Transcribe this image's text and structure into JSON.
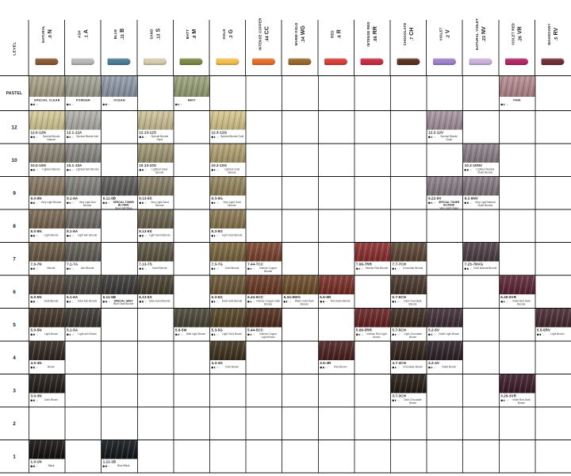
{
  "page": {
    "left_axis_label": "LEVEL"
  },
  "dot_pattern": [
    "filled",
    "half",
    "empty"
  ],
  "columns": [
    {
      "name": "NATURAL",
      "letter": "N",
      "code": ".0",
      "swatch_color": "#8c5a36"
    },
    {
      "name": "ASH",
      "letter": "A",
      "code": ".1",
      "swatch_color": "#b7bab6"
    },
    {
      "name": "BLUE",
      "letter": "B",
      "code": ".11",
      "swatch_color": "#4f7e95"
    },
    {
      "name": "SAND",
      "letter": "S",
      "code": ".13",
      "swatch_color": "#d9cbb1"
    },
    {
      "name": "MATT",
      "letter": "M",
      "code": ".8",
      "swatch_color": "#7c8a4a"
    },
    {
      "name": "GOLD",
      "letter": "G",
      "code": ".3",
      "swatch_color": "#f2c14d"
    },
    {
      "name": "INTENSE COPPER",
      "letter": "CC",
      "code": ".44",
      "swatch_color": "#e4722c"
    },
    {
      "name": "WARM GOLD",
      "letter": "WG",
      "code": ".34",
      "swatch_color": "#9a6b2e"
    },
    {
      "name": "RED",
      "letter": "R",
      "code": ".6",
      "swatch_color": "#d8423c"
    },
    {
      "name": "INTENSE RED",
      "letter": "RR",
      "code": ".66",
      "swatch_color": "#c63046"
    },
    {
      "name": "CHOCOLATE",
      "letter": "CH",
      "code": ".7",
      "swatch_color": "#5e3524"
    },
    {
      "name": "VIOLET",
      "letter": "V",
      "code": ".2",
      "swatch_color": "#a183cb"
    },
    {
      "name": "NATURAL VIOLET",
      "letter": "NV",
      "code": ".23",
      "swatch_color": "#cbb3da"
    },
    {
      "name": "VIOLET RED",
      "letter": "VR",
      "code": ".26",
      "swatch_color": "#b42a68"
    },
    {
      "name": "MAHOGANY",
      "letter": "RV",
      "code": ".5",
      "swatch_color": "#703239"
    }
  ],
  "levels": [
    "PASTEL",
    "12",
    "10",
    "9",
    "8",
    "7",
    "6",
    "5",
    "4",
    "3",
    "2",
    "1"
  ],
  "pastels": [
    {
      "col": 0,
      "name": "SPECIAL CLEAR",
      "color": "#a9a287"
    },
    {
      "col": 1,
      "name": "POWDER",
      "color": "#a2a394"
    },
    {
      "col": 2,
      "name": "OCEAN",
      "color": "#8e99a8"
    },
    {
      "col": 4,
      "name": "MINT",
      "color": "#99a178"
    },
    {
      "col": 13,
      "name": "PINK",
      "color": "#b5898e"
    }
  ],
  "shades": [
    {
      "level": "12",
      "col": 0,
      "code": "12.0-12N",
      "desc": "Special Blonde Natural",
      "color": "#d5ca96"
    },
    {
      "level": "12",
      "col": 1,
      "code": "12.1-12A",
      "desc": "Special Blonde Ash",
      "color": "#b2b0a9"
    },
    {
      "level": "12",
      "col": 3,
      "code": "12.13-12S",
      "desc": "Special Blonde Sand",
      "color": "#cdc298"
    },
    {
      "level": "12",
      "col": 5,
      "code": "12.3-12G",
      "desc": "Special Blonde Gold",
      "color": "#d7c78b"
    },
    {
      "level": "12",
      "col": 11,
      "code": "12.2-12V",
      "desc": "Special Blonde Violet",
      "color": "#a5939d"
    },
    {
      "level": "10",
      "col": 0,
      "code": "10.0-10N",
      "desc": "Lightest Blonde",
      "color": "#8f8574"
    },
    {
      "level": "10",
      "col": 1,
      "code": "10.1-10A",
      "desc": "Lightest Ash Blonde",
      "color": "#8b8983"
    },
    {
      "level": "10",
      "col": 3,
      "code": "10.13-10S",
      "desc": "Lightest Sand Blonde",
      "color": "#a09674"
    },
    {
      "level": "10",
      "col": 5,
      "code": "10.3-10G",
      "desc": "Lightest Gold Blonde",
      "color": "#b1a172"
    },
    {
      "level": "10",
      "col": 12,
      "code": "10.2-10NV",
      "desc": "Lightest Natural Violet Blonde",
      "color": "#8d8088"
    },
    {
      "level": "9",
      "col": 0,
      "code": "9.0-9N",
      "desc": "Very Light Blonde",
      "color": "#897863"
    },
    {
      "level": "9",
      "col": 1,
      "code": "9.1-9A",
      "desc": "Very Light Ash Blonde",
      "color": "#83817d"
    },
    {
      "level": "9",
      "col": 2,
      "code": "9.11-9B",
      "note": "Special Toner Blonde",
      "desc": "Very Light Blue Blonde",
      "color": "#5e5c5b"
    },
    {
      "level": "9",
      "col": 3,
      "code": "9.13-9S",
      "desc": "Very Light Sand Blonde",
      "color": "#857b62"
    },
    {
      "level": "9",
      "col": 5,
      "code": "9.3-9G",
      "desc": "Very Light Gold Blonde",
      "color": "#95855d"
    },
    {
      "level": "9",
      "col": 11,
      "code": "9.22-9V",
      "note": "Special Toner Blonde",
      "desc": "Very Light Violet Blonde",
      "color": "#8a7d86"
    },
    {
      "level": "9",
      "col": 12,
      "code": "9.2-9NV",
      "desc": "Very Light Natural Violet Blonde",
      "color": "#857880"
    },
    {
      "level": "8",
      "col": 0,
      "code": "8.0-8N",
      "desc": "Light Blonde",
      "color": "#7a6852"
    },
    {
      "level": "8",
      "col": 1,
      "code": "8.1-8A",
      "desc": "Light Ash Blonde",
      "color": "#736e68"
    },
    {
      "level": "8",
      "col": 3,
      "code": "8.13-8S",
      "desc": "Light Sand Blonde",
      "color": "#6d654e"
    },
    {
      "level": "8",
      "col": 5,
      "code": "8.3-8G",
      "desc": "Light Gold Blonde",
      "color": "#8a7850"
    },
    {
      "level": "7",
      "col": 0,
      "code": "7.0-7N",
      "desc": "Blonde",
      "color": "#695842"
    },
    {
      "level": "7",
      "col": 1,
      "code": "7.1-7A",
      "desc": "Ash Blonde",
      "color": "#625d56"
    },
    {
      "level": "7",
      "col": 3,
      "code": "7.13-7S",
      "desc": "Sand Blonde",
      "color": "#5c5541"
    },
    {
      "level": "7",
      "col": 5,
      "code": "7.3-7G",
      "desc": "Gold Blonde",
      "color": "#7a663d"
    },
    {
      "level": "7",
      "col": 6,
      "code": "7.44-7CC",
      "desc": "Intense Copper Blonde",
      "color": "#7c442e"
    },
    {
      "level": "7",
      "col": 9,
      "code": "7.66-7RR",
      "desc": "Intense Red Blonde",
      "color": "#8c2e2e"
    },
    {
      "level": "7",
      "col": 10,
      "code": "7.7-7CH",
      "desc": "Chocolate Blonde",
      "color": "#5b4534"
    },
    {
      "level": "7",
      "col": 12,
      "code": "7.23-7NVG",
      "desc": "Gold Natural Blonde",
      "color": "#4c3d44"
    },
    {
      "level": "6",
      "col": 0,
      "code": "6.0-6N",
      "desc": "Dark Blonde",
      "color": "#534438"
    },
    {
      "level": "6",
      "col": 1,
      "code": "6.1-6A",
      "desc": "Dark Ash Blonde",
      "color": "#4a4641"
    },
    {
      "level": "6",
      "col": 2,
      "code": "6.11-6B",
      "note": "Special Grey",
      "desc": "Blue Dark Blonde",
      "color": "#3a3938"
    },
    {
      "level": "6",
      "col": 3,
      "code": "6.13-6S",
      "desc": "Dark Sand Blonde",
      "color": "#453f2d"
    },
    {
      "level": "6",
      "col": 5,
      "code": "6.3-6G",
      "desc": "Dark Gold Blonde",
      "color": "#685634"
    },
    {
      "level": "6",
      "col": 6,
      "code": "6.44-6CC",
      "desc": "Intense Copper Dark Blonde",
      "color": "#693824"
    },
    {
      "level": "6",
      "col": 7,
      "code": "6.34-6WG",
      "desc": "Warm Gold Dark Blonde",
      "color": "#6c4d28"
    },
    {
      "level": "6",
      "col": 8,
      "code": "6.6-6R",
      "desc": "Red Dark Blonde",
      "color": "#7a2d26"
    },
    {
      "level": "6",
      "col": 10,
      "code": "6.7-6CH",
      "desc": "Dark Chocolate Blonde",
      "color": "#48362a"
    },
    {
      "level": "6",
      "col": 13,
      "code": "6.26-6VR",
      "desc": "Violet Red Dark Blonde",
      "color": "#5d2536"
    },
    {
      "level": "5",
      "col": 0,
      "code": "5.0-5N",
      "desc": "Light Brown",
      "color": "#413225"
    },
    {
      "level": "5",
      "col": 1,
      "code": "5.1-5A",
      "desc": "Light Ash Brown",
      "color": "#3b3731"
    },
    {
      "level": "5",
      "col": 4,
      "code": "5.8-5M",
      "desc": "Matt Light Brown",
      "color": "#474636"
    },
    {
      "level": "5",
      "col": 5,
      "code": "5.3-5G",
      "desc": "Light Gold Brown",
      "color": "#544325"
    },
    {
      "level": "5",
      "col": 6,
      "code": "5.44-5CC",
      "desc": "Intense Copper Light Brown",
      "color": "#512e1d"
    },
    {
      "level": "5",
      "col": 9,
      "code": "5.66-5RR",
      "desc": "Intense Red Light Brown",
      "color": "#692222"
    },
    {
      "level": "5",
      "col": 10,
      "code": "5.7-5CH",
      "desc": "Light Chocolate Brown",
      "color": "#3c2b20"
    },
    {
      "level": "5",
      "col": 11,
      "code": "5.2-5V",
      "desc": "Violet Light Brown",
      "color": "#3f2e36"
    },
    {
      "level": "5",
      "col": 14,
      "code": "5.5-5RV",
      "desc": "Light Brown",
      "color": "#482931"
    },
    {
      "level": "4",
      "col": 0,
      "code": "4.0-4N",
      "desc": "Brown",
      "color": "#312620"
    },
    {
      "level": "4",
      "col": 5,
      "code": "4.3-4G",
      "desc": "Gold Brown",
      "color": "#3e311d"
    },
    {
      "level": "4",
      "col": 8,
      "code": "4.6-4R",
      "desc": "Red Brown",
      "color": "#4c1f1f"
    },
    {
      "level": "4",
      "col": 10,
      "code": "4.7-4CH",
      "desc": "Chocolate Brown",
      "color": "#30221a"
    },
    {
      "level": "4",
      "col": 11,
      "code": "4.2-4V",
      "desc": "Violet Brown",
      "color": "#2d2027"
    },
    {
      "level": "3",
      "col": 0,
      "code": "3.0-3N",
      "desc": "Dark Brown",
      "color": "#231c17"
    },
    {
      "level": "3",
      "col": 10,
      "code": "3.7-3CH",
      "desc": "Dark Chocolate Brown",
      "color": "#251b15"
    },
    {
      "level": "3",
      "col": 13,
      "code": "3.26-3VR",
      "desc": "Violet Red Dark Brown",
      "color": "#3c1b28"
    },
    {
      "level": "1",
      "col": 0,
      "code": "1.0-1N",
      "desc": "Black",
      "color": "#141110"
    },
    {
      "level": "1",
      "col": 2,
      "code": "1.11-1B",
      "desc": "Blue Black",
      "color": "#131719"
    }
  ]
}
